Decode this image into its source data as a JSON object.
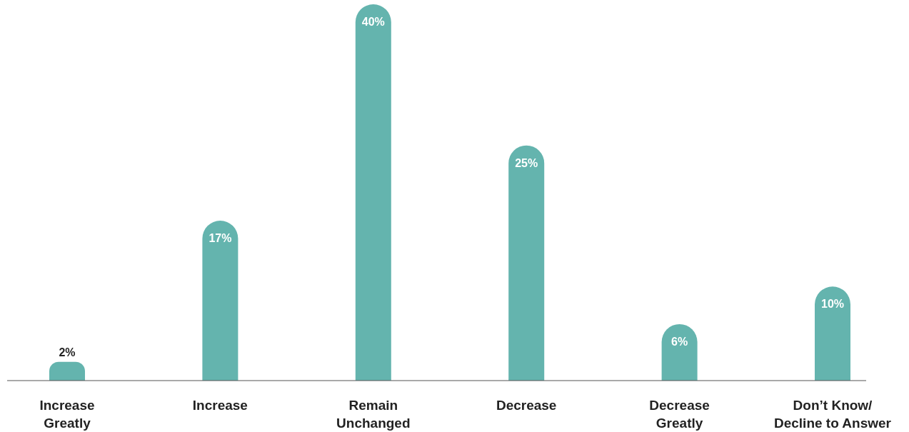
{
  "chart_data": {
    "type": "bar",
    "categories": [
      "Increase\nGreatly",
      "Increase",
      "Remain\nUnchanged",
      "Decrease",
      "Decrease\nGreatly",
      "Don’t Know/\nDecline to Answer"
    ],
    "values": [
      2,
      17,
      40,
      25,
      6,
      10
    ],
    "value_labels": [
      "2%",
      "17%",
      "40%",
      "25%",
      "6%",
      "10%"
    ],
    "color": "#64b4ae"
  }
}
